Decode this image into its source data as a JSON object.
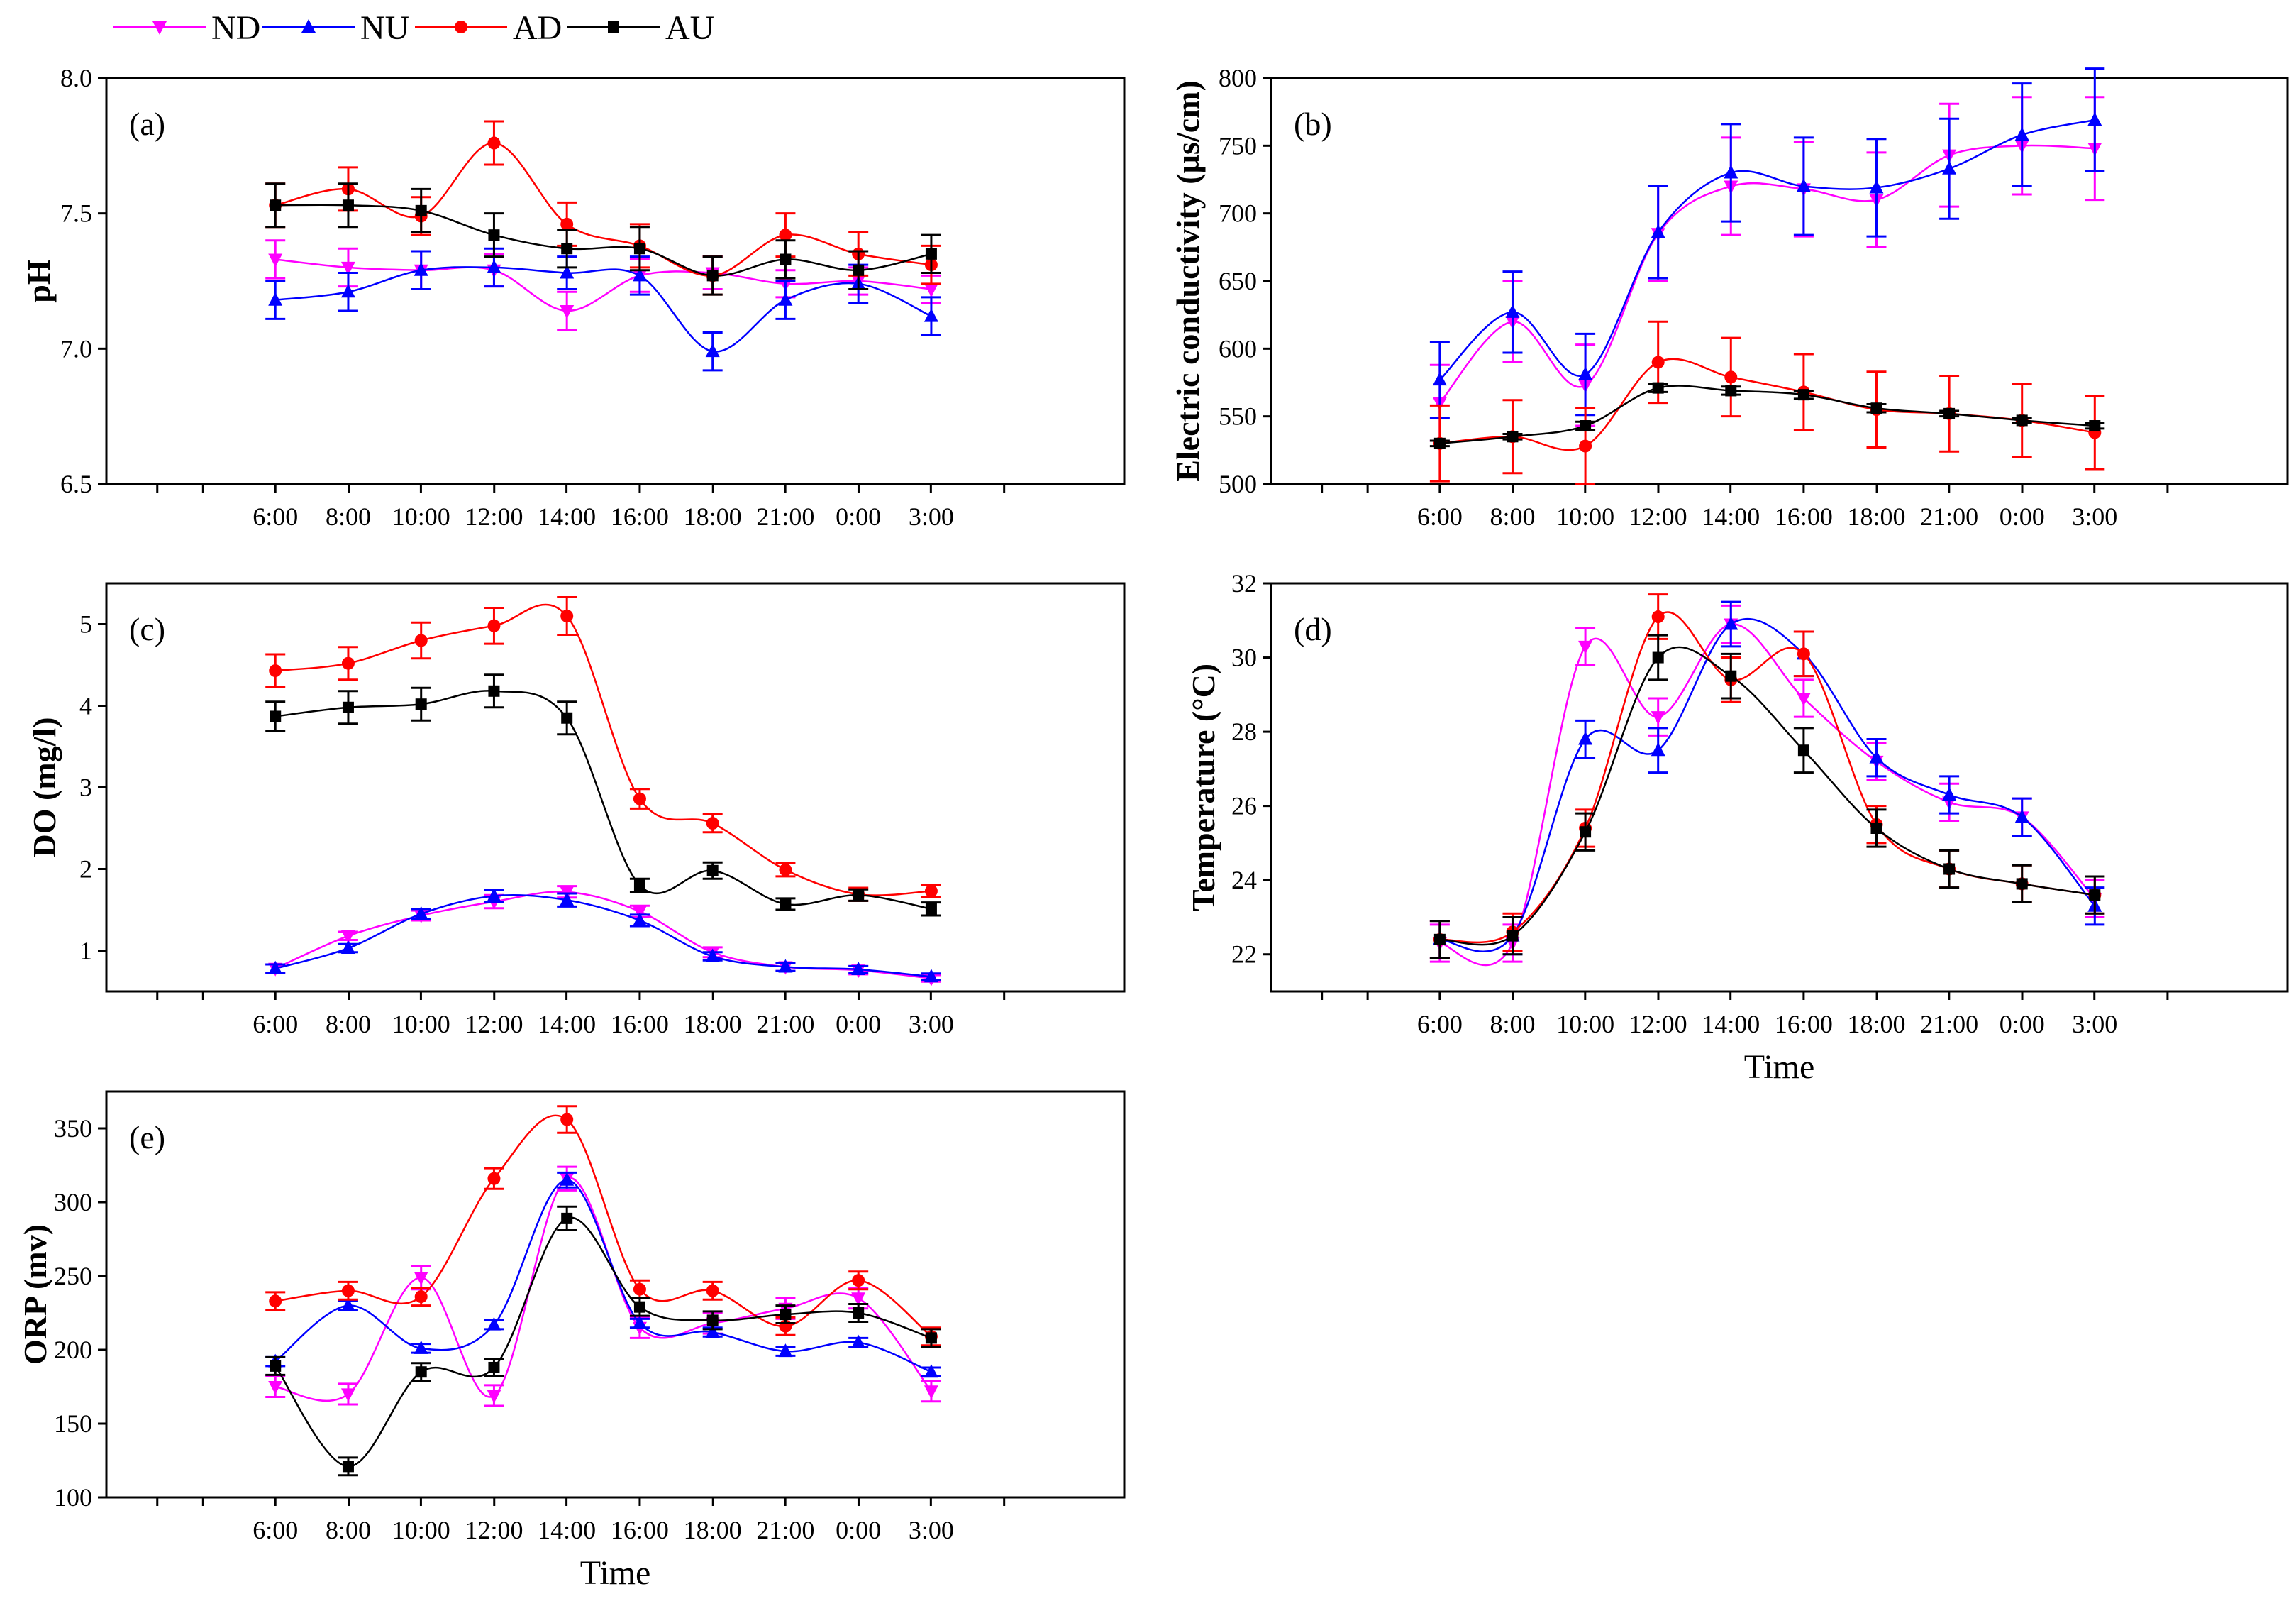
{
  "legend": [
    {
      "key": "ND",
      "label": "ND",
      "color": "#ff00ff",
      "marker": "triangle-down"
    },
    {
      "key": "NU",
      "label": "NU",
      "color": "#0000ff",
      "marker": "triangle-up"
    },
    {
      "key": "AD",
      "label": "AD",
      "color": "#ff0000",
      "marker": "circle"
    },
    {
      "key": "AU",
      "label": "AU",
      "color": "#000000",
      "marker": "square"
    }
  ],
  "chart_data": [
    {
      "id": "a",
      "type": "line",
      "panel_label": "(a)",
      "title": "",
      "xlabel": "",
      "ylabel": "pH",
      "categories": [
        "6:00",
        "8:00",
        "10:00",
        "12:00",
        "14:00",
        "16:00",
        "18:00",
        "21:00",
        "0:00",
        "3:00"
      ],
      "ylim": [
        6.5,
        8.0
      ],
      "yticks": [
        6.5,
        7.0,
        7.5,
        8.0
      ],
      "ytick_labels": [
        "6.5",
        "7.0",
        "7.5",
        "8.0"
      ],
      "series": [
        {
          "name": "ND",
          "values": [
            7.33,
            7.3,
            7.29,
            7.29,
            7.14,
            7.27,
            7.28,
            7.24,
            7.25,
            7.22
          ],
          "errors": [
            0.07,
            0.07,
            0.07,
            0.06,
            0.07,
            0.06,
            0.06,
            0.05,
            0.05,
            0.05
          ]
        },
        {
          "name": "NU",
          "values": [
            7.18,
            7.21,
            7.29,
            7.3,
            7.28,
            7.27,
            6.99,
            7.18,
            7.24,
            7.12
          ],
          "errors": [
            0.07,
            0.07,
            0.07,
            0.07,
            0.06,
            0.07,
            0.07,
            0.07,
            0.07,
            0.07
          ]
        },
        {
          "name": "AD",
          "values": [
            7.53,
            7.59,
            7.49,
            7.76,
            7.46,
            7.38,
            7.27,
            7.42,
            7.35,
            7.31
          ],
          "errors": [
            0.08,
            0.08,
            0.07,
            0.08,
            0.08,
            0.08,
            0.07,
            0.08,
            0.08,
            0.07
          ]
        },
        {
          "name": "AU",
          "values": [
            7.53,
            7.53,
            7.51,
            7.42,
            7.37,
            7.37,
            7.27,
            7.33,
            7.29,
            7.35
          ],
          "errors": [
            0.08,
            0.08,
            0.08,
            0.08,
            0.07,
            0.08,
            0.07,
            0.07,
            0.07,
            0.07
          ]
        }
      ]
    },
    {
      "id": "b",
      "type": "line",
      "panel_label": "(b)",
      "title": "",
      "xlabel": "",
      "ylabel": "Electric conductivity (µs/cm)",
      "categories": [
        "6:00",
        "8:00",
        "10:00",
        "12:00",
        "14:00",
        "16:00",
        "18:00",
        "21:00",
        "0:00",
        "3:00"
      ],
      "ylim": [
        500,
        800
      ],
      "yticks": [
        500,
        550,
        600,
        650,
        700,
        750,
        800
      ],
      "ytick_labels": [
        "500",
        "550",
        "600",
        "650",
        "700",
        "750",
        "800"
      ],
      "series": [
        {
          "name": "ND",
          "values": [
            560,
            620,
            573,
            685,
            720,
            718,
            710,
            743,
            750,
            748
          ],
          "errors": [
            28,
            30,
            30,
            35,
            36,
            35,
            35,
            38,
            36,
            38
          ]
        },
        {
          "name": "NU",
          "values": [
            577,
            627,
            581,
            686,
            730,
            720,
            719,
            733,
            758,
            769
          ],
          "errors": [
            28,
            30,
            30,
            34,
            36,
            36,
            36,
            37,
            38,
            38
          ]
        },
        {
          "name": "AD",
          "values": [
            530,
            535,
            528,
            590,
            579,
            568,
            555,
            552,
            547,
            538
          ],
          "errors": [
            28,
            27,
            28,
            30,
            29,
            28,
            28,
            28,
            27,
            27
          ]
        },
        {
          "name": "AU",
          "values": [
            530,
            535,
            543,
            571,
            569,
            566,
            556,
            552,
            547,
            543
          ],
          "errors": [
            2,
            2,
            3,
            3,
            3,
            3,
            3,
            2,
            2,
            2
          ]
        }
      ]
    },
    {
      "id": "c",
      "type": "line",
      "panel_label": "(c)",
      "title": "",
      "xlabel": "",
      "ylabel": "DO (mg/l)",
      "categories": [
        "6:00",
        "8:00",
        "10:00",
        "12:00",
        "14:00",
        "16:00",
        "18:00",
        "21:00",
        "0:00",
        "3:00"
      ],
      "ylim": [
        0.5,
        5.5
      ],
      "yticks": [
        1,
        2,
        3,
        4,
        5
      ],
      "ytick_labels": [
        "1",
        "2",
        "3",
        "4",
        "5"
      ],
      "series": [
        {
          "name": "ND",
          "values": [
            0.78,
            1.18,
            1.43,
            1.6,
            1.72,
            1.48,
            0.98,
            0.8,
            0.76,
            0.66
          ],
          "errors": [
            0.05,
            0.05,
            0.06,
            0.08,
            0.07,
            0.07,
            0.06,
            0.05,
            0.05,
            0.04
          ]
        },
        {
          "name": "NU",
          "values": [
            0.78,
            1.03,
            1.45,
            1.67,
            1.62,
            1.37,
            0.93,
            0.8,
            0.77,
            0.68
          ],
          "errors": [
            0.05,
            0.05,
            0.06,
            0.07,
            0.08,
            0.07,
            0.05,
            0.05,
            0.04,
            0.04
          ]
        },
        {
          "name": "AD",
          "values": [
            4.43,
            4.52,
            4.8,
            4.98,
            5.1,
            2.86,
            2.56,
            1.99,
            1.69,
            1.73
          ],
          "errors": [
            0.2,
            0.2,
            0.22,
            0.22,
            0.23,
            0.12,
            0.11,
            0.08,
            0.08,
            0.07
          ]
        },
        {
          "name": "AU",
          "values": [
            3.87,
            3.98,
            4.02,
            4.18,
            3.85,
            1.8,
            1.98,
            1.57,
            1.68,
            1.51
          ],
          "errors": [
            0.18,
            0.2,
            0.2,
            0.2,
            0.2,
            0.08,
            0.1,
            0.07,
            0.07,
            0.08
          ]
        }
      ]
    },
    {
      "id": "d",
      "type": "line",
      "panel_label": "(d)",
      "title": "",
      "xlabel": "Time",
      "ylabel": "Temperature (°C)",
      "categories": [
        "6:00",
        "8:00",
        "10:00",
        "12:00",
        "14:00",
        "16:00",
        "18:00",
        "21:00",
        "0:00",
        "3:00"
      ],
      "ylim": [
        21,
        32
      ],
      "yticks": [
        22,
        24,
        26,
        28,
        30,
        32
      ],
      "ytick_labels": [
        "22",
        "24",
        "26",
        "28",
        "30",
        "32"
      ],
      "series": [
        {
          "name": "ND",
          "values": [
            22.3,
            22.3,
            30.3,
            28.4,
            30.9,
            28.9,
            27.2,
            26.1,
            25.7,
            23.5
          ],
          "errors": [
            0.5,
            0.5,
            0.5,
            0.5,
            0.5,
            0.5,
            0.5,
            0.5,
            0.5,
            0.5
          ]
        },
        {
          "name": "NU",
          "values": [
            22.4,
            22.5,
            27.8,
            27.5,
            30.9,
            30.1,
            27.3,
            26.3,
            25.7,
            23.3
          ],
          "errors": [
            0.5,
            0.5,
            0.5,
            0.6,
            0.6,
            0.6,
            0.5,
            0.5,
            0.5,
            0.5
          ]
        },
        {
          "name": "AD",
          "values": [
            22.4,
            22.6,
            25.4,
            31.1,
            29.4,
            30.1,
            25.5,
            24.3,
            23.9,
            23.6
          ],
          "errors": [
            0.5,
            0.5,
            0.5,
            0.6,
            0.6,
            0.6,
            0.5,
            0.5,
            0.5,
            0.5
          ]
        },
        {
          "name": "AU",
          "values": [
            22.4,
            22.5,
            25.3,
            30.0,
            29.5,
            27.5,
            25.4,
            24.3,
            23.9,
            23.6
          ],
          "errors": [
            0.5,
            0.5,
            0.5,
            0.6,
            0.6,
            0.6,
            0.5,
            0.5,
            0.5,
            0.5
          ]
        }
      ]
    },
    {
      "id": "e",
      "type": "line",
      "panel_label": "(e)",
      "title": "",
      "xlabel": "Time",
      "ylabel": "ORP (mv)",
      "categories": [
        "6:00",
        "8:00",
        "10:00",
        "12:00",
        "14:00",
        "16:00",
        "18:00",
        "21:00",
        "0:00",
        "3:00"
      ],
      "ylim": [
        100,
        375
      ],
      "yticks": [
        100,
        150,
        200,
        250,
        300,
        350
      ],
      "ytick_labels": [
        "100",
        "150",
        "200",
        "250",
        "300",
        "350"
      ],
      "series": [
        {
          "name": "ND",
          "values": [
            175,
            170,
            249,
            169,
            316,
            215,
            218,
            228,
            235,
            172
          ],
          "errors": [
            7,
            7,
            8,
            7,
            8,
            7,
            7,
            7,
            7,
            7
          ]
        },
        {
          "name": "NU",
          "values": [
            192,
            230,
            201,
            217,
            315,
            218,
            212,
            199,
            205,
            185
          ],
          "errors": [
            3,
            3,
            3,
            3,
            5,
            3,
            3,
            3,
            3,
            3
          ]
        },
        {
          "name": "AD",
          "values": [
            233,
            240,
            236,
            316,
            356,
            241,
            240,
            216,
            247,
            209
          ],
          "errors": [
            6,
            6,
            6,
            7,
            9,
            6,
            6,
            6,
            6,
            6
          ]
        },
        {
          "name": "AU",
          "values": [
            189,
            121,
            185,
            188,
            289,
            229,
            220,
            224,
            225,
            208
          ],
          "errors": [
            6,
            6,
            6,
            6,
            8,
            6,
            6,
            6,
            6,
            6
          ]
        }
      ]
    }
  ]
}
